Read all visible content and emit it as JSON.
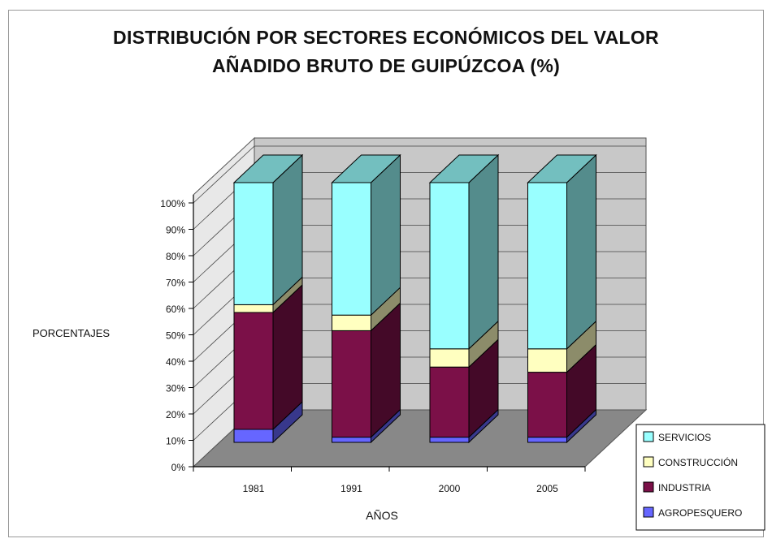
{
  "chart_data": {
    "type": "bar",
    "stacked": true,
    "three_d": true,
    "title_lines": [
      "DISTRIBUCIÓN POR SECTORES ECONÓMICOS DEL VALOR",
      "AÑADIDO BRUTO DE GUIPÚZCOA (%)"
    ],
    "xlabel": "AÑOS",
    "ylabel": "PORCENTAJES",
    "categories": [
      "1981",
      "1991",
      "2000",
      "2005"
    ],
    "y_ticks": [
      "0%",
      "10%",
      "20%",
      "30%",
      "40%",
      "50%",
      "60%",
      "70%",
      "80%",
      "90%",
      "100%"
    ],
    "ylim": [
      0,
      100
    ],
    "grid": true,
    "legend_position": "bottom-right",
    "series": [
      {
        "name": "AGROPESQUERO",
        "color": "#6666ff",
        "values": [
          5,
          2,
          2,
          2
        ]
      },
      {
        "name": "INDUSTRIA",
        "color": "#7b1048",
        "values": [
          45,
          41,
          27,
          25
        ]
      },
      {
        "name": "CONSTRUCCIÓN",
        "color": "#ffffc0",
        "values": [
          3,
          6,
          7,
          9
        ]
      },
      {
        "name": "SERVICIOS",
        "color": "#99ffff",
        "values": [
          47,
          51,
          64,
          64
        ]
      }
    ]
  }
}
